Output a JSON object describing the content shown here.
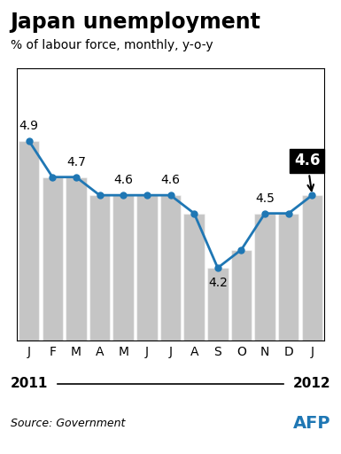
{
  "chart_data": {
    "type": "bar+line",
    "title": "Japan unemployment",
    "subtitle": "% of labour force, monthly, y-o-y",
    "categories": [
      "J",
      "F",
      "M",
      "A",
      "M",
      "J",
      "J",
      "A",
      "S",
      "O",
      "N",
      "D",
      "J"
    ],
    "series": [
      {
        "type": "bar",
        "values": [
          4.9,
          4.7,
          4.7,
          4.6,
          4.6,
          4.6,
          4.6,
          4.5,
          4.2,
          4.3,
          4.5,
          4.5,
          4.6
        ]
      },
      {
        "type": "line",
        "marker": "o",
        "values": [
          4.9,
          4.7,
          4.7,
          4.6,
          4.6,
          4.6,
          4.6,
          4.5,
          4.2,
          4.3,
          4.5,
          4.5,
          4.6
        ],
        "value_labels": [
          "4.9",
          null,
          "4.7",
          null,
          "4.6",
          null,
          "4.6",
          null,
          "4.2",
          null,
          "4.5",
          null,
          null
        ]
      }
    ],
    "data_labels": true,
    "annotations": [
      {
        "text": "4.6",
        "x": 12,
        "y": 4.6
      }
    ],
    "period": [
      "2011",
      "2012"
    ],
    "source": "Source: Government",
    "credit": "AFP",
    "ylim": [
      3.8,
      5.3
    ],
    "yticks": [],
    "tick_labels": "x",
    "grid": false
  }
}
